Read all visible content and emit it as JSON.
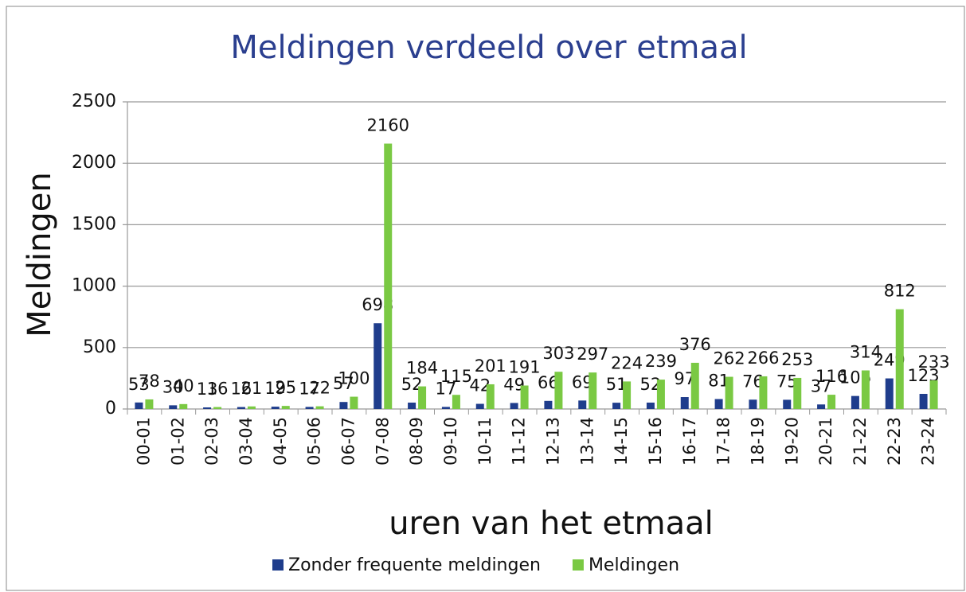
{
  "chart_data": {
    "type": "bar",
    "title": "Meldingen verdeeld over etmaal",
    "y_label": "Meldingen",
    "x_label": "uren van het etmaal",
    "categories": [
      "00-01",
      "01-02",
      "02-03",
      "03-04",
      "04-05",
      "05-06",
      "06-07",
      "07-08",
      "08-09",
      "09-10",
      "10-11",
      "11-12",
      "12-13",
      "13-14",
      "14-15",
      "15-16",
      "16-17",
      "17-18",
      "18-19",
      "19-20",
      "20-21",
      "21-22",
      "22-23",
      "23-24"
    ],
    "series": [
      {
        "name": "Zonder frequente meldingen",
        "color": "#1f3d8c",
        "values": [
          53,
          30,
          13,
          16,
          19,
          17,
          57,
          698,
          52,
          17,
          42,
          49,
          66,
          69,
          51,
          52,
          97,
          81,
          76,
          75,
          37,
          106,
          249,
          123
        ]
      },
      {
        "name": "Meldingen",
        "color": "#7ac943",
        "values": [
          78,
          40,
          16,
          21,
          25,
          22,
          100,
          2160,
          184,
          115,
          201,
          191,
          303,
          297,
          224,
          239,
          376,
          262,
          266,
          253,
          116,
          314,
          812,
          233
        ]
      }
    ],
    "ylim": [
      0,
      2500
    ],
    "yticks": [
      0,
      500,
      1000,
      1500,
      2000,
      2500
    ],
    "grid": true,
    "legend": "bottom"
  }
}
